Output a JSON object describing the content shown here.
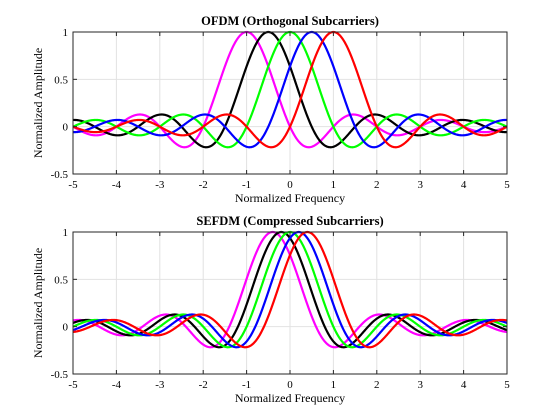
{
  "chart_data": [
    {
      "type": "line",
      "title": "OFDM (Orthogonal Subcarriers)",
      "xlabel": "Normalized Frequency",
      "ylabel": "Normalized Amplitude",
      "xlim": [
        -5,
        5
      ],
      "ylim": [
        -0.5,
        1
      ],
      "xticks": [
        -5,
        -4,
        -3,
        -2,
        -1,
        0,
        1,
        2,
        3,
        4,
        5
      ],
      "xticklabels": [
        "-5",
        "-4",
        "-3",
        "-2",
        "-1",
        "0",
        "1",
        "2",
        "3",
        "4",
        "5"
      ],
      "yticks": [
        -0.5,
        0,
        0.5,
        1
      ],
      "yticklabels": [
        "-0.5",
        "0",
        "0.5",
        "1"
      ],
      "grid": true,
      "function": "sinc(f - fc) with sinc(x) = sin(pi x)/(pi x)",
      "series": [
        {
          "center": -1.0,
          "color": "#ff00ff"
        },
        {
          "center": -0.5,
          "color": "#000000"
        },
        {
          "center": 0.0,
          "color": "#00ff00"
        },
        {
          "center": 0.5,
          "color": "#0000ff"
        },
        {
          "center": 1.0,
          "color": "#ff0000"
        }
      ]
    },
    {
      "type": "line",
      "title": "SEFDM (Compressed Subcarriers)",
      "xlabel": "Normalized Frequency",
      "ylabel": "Normalized Amplitude",
      "xlim": [
        -5,
        5
      ],
      "ylim": [
        -0.5,
        1
      ],
      "xticks": [
        -5,
        -4,
        -3,
        -2,
        -1,
        0,
        1,
        2,
        3,
        4,
        5
      ],
      "xticklabels": [
        "-5",
        "-4",
        "-3",
        "-2",
        "-1",
        "0",
        "1",
        "2",
        "3",
        "4",
        "5"
      ],
      "yticks": [
        -0.5,
        0,
        0.5,
        1
      ],
      "yticklabels": [
        "-0.5",
        "0",
        "0.5",
        "1"
      ],
      "grid": true,
      "function": "sinc(f - fc) with sinc(x) = sin(pi x)/(pi x)",
      "series": [
        {
          "center": -0.4,
          "color": "#ff00ff"
        },
        {
          "center": -0.2,
          "color": "#000000"
        },
        {
          "center": 0.0,
          "color": "#00ff00"
        },
        {
          "center": 0.2,
          "color": "#0000ff"
        },
        {
          "center": 0.4,
          "color": "#ff0000"
        }
      ]
    }
  ]
}
